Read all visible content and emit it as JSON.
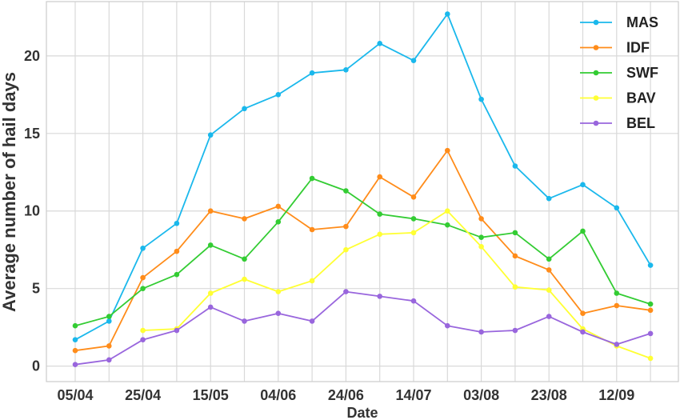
{
  "chart_data": {
    "type": "line",
    "title": "",
    "xlabel": "Date",
    "ylabel": "Average number of hail days",
    "x": [
      "05/04",
      "15/04",
      "25/04",
      "05/05",
      "15/05",
      "25/05",
      "04/06",
      "14/06",
      "24/06",
      "04/07",
      "14/07",
      "24/07",
      "03/08",
      "13/08",
      "23/08",
      "02/09",
      "12/09",
      "22/09"
    ],
    "xticks": [
      "05/04",
      "25/04",
      "15/05",
      "04/06",
      "24/06",
      "14/07",
      "03/08",
      "23/08",
      "12/09"
    ],
    "yticks": [
      0,
      5,
      10,
      15,
      20
    ],
    "ylim": [
      -1,
      23.5
    ],
    "grid": true,
    "legend_position": "top-right",
    "series": [
      {
        "name": "MAS",
        "color": "#1ab8ec",
        "values": [
          1.7,
          2.9,
          7.6,
          9.2,
          14.9,
          16.6,
          17.5,
          18.9,
          19.1,
          20.8,
          19.7,
          22.7,
          17.2,
          12.9,
          10.8,
          11.7,
          10.2,
          6.5
        ]
      },
      {
        "name": "IDF",
        "color": "#ff8c1a",
        "values": [
          1.0,
          1.3,
          5.7,
          7.4,
          10.0,
          9.5,
          10.3,
          8.8,
          9.0,
          12.2,
          10.9,
          13.9,
          9.5,
          7.1,
          6.2,
          3.4,
          3.9,
          3.6
        ]
      },
      {
        "name": "SWF",
        "color": "#33cc33",
        "values": [
          2.6,
          3.2,
          5.0,
          5.9,
          7.8,
          6.9,
          9.3,
          12.1,
          11.3,
          9.8,
          9.5,
          9.1,
          8.3,
          8.6,
          6.9,
          8.7,
          4.7,
          4.0
        ]
      },
      {
        "name": "BAV",
        "color": "#ffff33",
        "values": [
          null,
          null,
          2.3,
          2.4,
          4.7,
          5.6,
          4.8,
          5.5,
          7.5,
          8.5,
          8.6,
          10.0,
          7.7,
          5.1,
          4.9,
          2.4,
          1.3,
          0.5
        ]
      },
      {
        "name": "BEL",
        "color": "#9966dd",
        "values": [
          0.1,
          0.4,
          1.7,
          2.3,
          3.8,
          2.9,
          3.4,
          2.9,
          4.8,
          4.5,
          4.2,
          2.6,
          2.2,
          2.3,
          3.2,
          2.2,
          1.4,
          2.1
        ]
      }
    ]
  }
}
